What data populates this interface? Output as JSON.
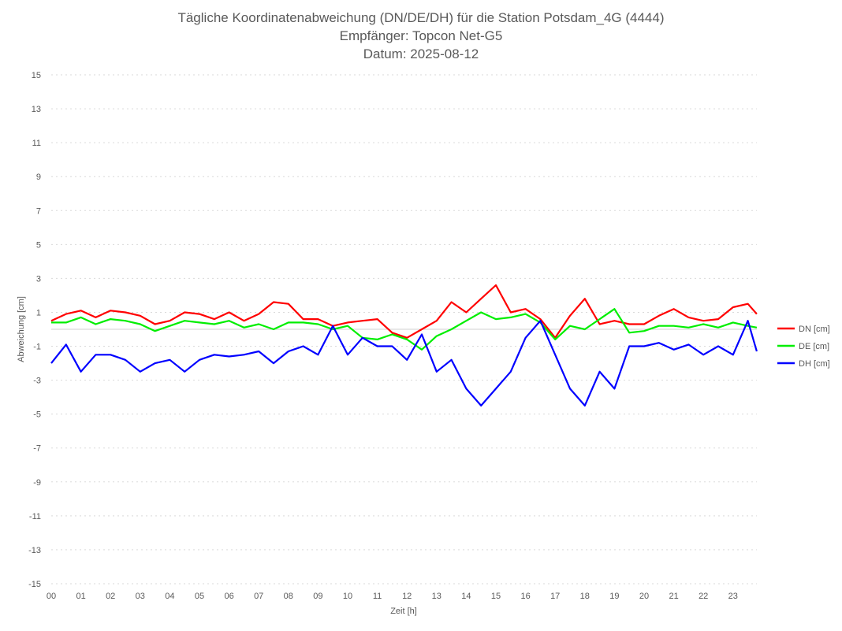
{
  "chart_data": {
    "type": "line",
    "title": [
      "Tägliche Koordinatenabweichung (DN/DE/DH) für die Station Potsdam_4G (4444)",
      "Empfänger: Topcon Net-G5",
      "Datum: 2025-08-12"
    ],
    "xlabel": "Zeit [h]",
    "ylabel": "Abweichung [cm]",
    "xlim": [
      0,
      24
    ],
    "ylim": [
      -15,
      15
    ],
    "x_ticks": [
      "00",
      "01",
      "02",
      "03",
      "04",
      "05",
      "06",
      "07",
      "08",
      "09",
      "10",
      "11",
      "12",
      "13",
      "14",
      "15",
      "16",
      "17",
      "18",
      "19",
      "20",
      "21",
      "22",
      "23"
    ],
    "y_ticks": [
      15,
      13,
      11,
      9,
      7,
      5,
      3,
      1,
      -1,
      -3,
      -5,
      -7,
      -9,
      -11,
      -13,
      -15
    ],
    "grid": true,
    "legend_position": "right",
    "x": [
      0,
      0.5,
      1,
      1.5,
      2,
      2.5,
      3,
      3.5,
      4,
      4.5,
      5,
      5.5,
      6,
      6.5,
      7,
      7.5,
      8,
      8.5,
      9,
      9.5,
      10,
      10.5,
      11,
      11.5,
      12,
      12.5,
      13,
      13.5,
      14,
      14.5,
      15,
      15.5,
      16,
      16.5,
      17,
      17.5,
      18,
      18.5,
      19,
      19.5,
      20,
      20.5,
      21,
      21.5,
      22,
      22.5,
      23,
      23.5,
      23.8
    ],
    "series": [
      {
        "name": "DN [cm]",
        "color": "#ff0000",
        "values": [
          0.5,
          0.9,
          1.1,
          0.7,
          1.1,
          1.0,
          0.8,
          0.3,
          0.5,
          1.0,
          0.9,
          0.6,
          1.0,
          0.5,
          0.9,
          1.6,
          1.5,
          0.6,
          0.6,
          0.2,
          0.4,
          0.5,
          0.6,
          -0.2,
          -0.5,
          0.0,
          0.5,
          1.6,
          1.0,
          1.8,
          2.6,
          1.0,
          1.2,
          0.6,
          -0.5,
          0.8,
          1.8,
          0.3,
          0.5,
          0.3,
          0.3,
          0.8,
          1.2,
          0.7,
          0.5,
          0.6,
          1.3,
          1.5,
          0.9
        ]
      },
      {
        "name": "DE [cm]",
        "color": "#00ee00",
        "values": [
          0.4,
          0.4,
          0.7,
          0.3,
          0.6,
          0.5,
          0.3,
          -0.1,
          0.2,
          0.5,
          0.4,
          0.3,
          0.5,
          0.1,
          0.3,
          0.0,
          0.4,
          0.4,
          0.3,
          0.0,
          0.2,
          -0.5,
          -0.6,
          -0.3,
          -0.6,
          -1.2,
          -0.4,
          0.0,
          0.5,
          1.0,
          0.6,
          0.7,
          0.9,
          0.4,
          -0.6,
          0.2,
          0.0,
          0.6,
          1.2,
          -0.2,
          -0.1,
          0.2,
          0.2,
          0.1,
          0.3,
          0.1,
          0.4,
          0.2,
          0.1
        ]
      },
      {
        "name": "DH [cm]",
        "color": "#0000ff",
        "values": [
          -2.0,
          -0.9,
          -2.5,
          -1.5,
          -1.5,
          -1.8,
          -2.5,
          -2.0,
          -1.8,
          -2.5,
          -1.8,
          -1.5,
          -1.6,
          -1.5,
          -1.3,
          -2.0,
          -1.3,
          -1.0,
          -1.5,
          0.2,
          -1.5,
          -0.5,
          -1.0,
          -1.0,
          -1.8,
          -0.3,
          -2.5,
          -1.8,
          -3.5,
          -4.5,
          -3.5,
          -2.5,
          -0.5,
          0.5,
          -1.5,
          -3.5,
          -4.5,
          -2.5,
          -3.5,
          -1.0,
          -1.0,
          -0.8,
          -1.2,
          -0.9,
          -1.5,
          -1.0,
          -1.5,
          0.5,
          -1.3
        ]
      }
    ]
  }
}
